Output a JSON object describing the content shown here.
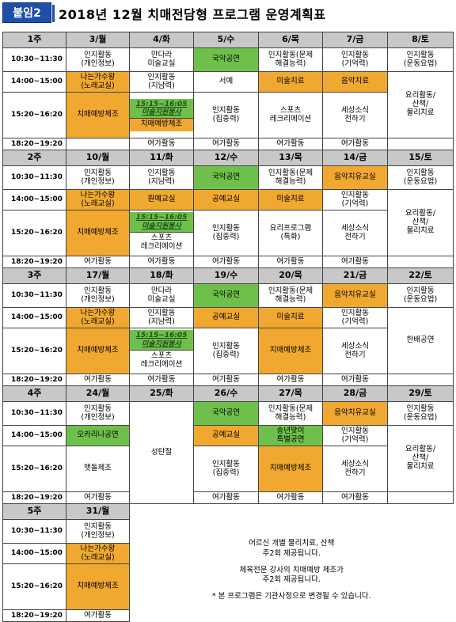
{
  "header": {
    "badge": "붙임2",
    "title": "2018년 12월 치매전담형 프로그램 운영계획표"
  },
  "times": [
    "10:30~11:30",
    "14:00~15:00",
    "15:20~16:20",
    "18:20~19:20"
  ],
  "weeks": [
    {
      "label": "1주",
      "days": [
        "3/월",
        "4/화",
        "5/수",
        "6/목",
        "7/금",
        "8/토"
      ],
      "rows": [
        [
          {
            "t": "인지활동\n(개인정보)"
          },
          {
            "t": "만다라\n미술교실"
          },
          {
            "t": "국악공연",
            "c": "g"
          },
          {
            "t": "인지활동(문제\n해결능력)"
          },
          {
            "t": "인지활동\n(기억력)"
          },
          {
            "t": "인지활동\n(운동요법)"
          }
        ],
        [
          {
            "t": "나는가수왕\n(노래교실)",
            "c": "o"
          },
          {
            "t": "인지활동\n(지남력)"
          },
          {
            "t": "서예"
          },
          {
            "t": "미술치료",
            "c": "o"
          },
          {
            "t": "음악치료",
            "c": "o"
          },
          {
            "t": "요리활동/\n산책/\n물리치료",
            "rs": 2
          }
        ],
        [
          {
            "t": "치매예방체조",
            "c": "o"
          },
          {
            "special": "15:15~16:05\n미술지원봉사",
            "t": "치매예방체조",
            "c": "g"
          },
          {
            "t": "인지활동\n(집중력)"
          },
          {
            "t": "스포츠\n레크리에이션"
          },
          {
            "t": "세상소식\n전하기"
          }
        ],
        [
          {
            "t": ""
          },
          {
            "t": "여가활동"
          },
          {
            "t": "여가활동"
          },
          {
            "t": "여가활동"
          },
          {
            "t": "여가활동"
          },
          {
            "t": ""
          }
        ]
      ]
    },
    {
      "label": "2주",
      "days": [
        "10/월",
        "11/화",
        "12/수",
        "13/목",
        "14/금",
        "15/토"
      ],
      "rows": [
        [
          {
            "t": "인지활동\n(개인정보)"
          },
          {
            "t": "인지활동\n(지남력)"
          },
          {
            "t": "국악공연",
            "c": "g"
          },
          {
            "t": "인지활동(문제\n해결능력)"
          },
          {
            "t": "음악치유교실",
            "c": "o"
          },
          {
            "t": "인지활동\n(운동요법)"
          }
        ],
        [
          {
            "t": "나는가수왕\n(노래교실)",
            "c": "o"
          },
          {
            "t": "원예교실",
            "c": "o"
          },
          {
            "t": "공예교실",
            "c": "o"
          },
          {
            "t": "미술치료",
            "c": "o"
          },
          {
            "t": "인지활동\n(기억력)"
          },
          {
            "t": "요리활동/\n산책/\n물리치료",
            "rs": 2
          }
        ],
        [
          {
            "t": "치매예방체조",
            "c": "o"
          },
          {
            "special": "15:15~16:05\n미술지원봉사",
            "t": "스포츠\n레크리에이션",
            "c": "g"
          },
          {
            "t": "인지활동\n(집중력)"
          },
          {
            "t": "요리프로그램\n(특화)"
          },
          {
            "t": "세상소식\n전하기"
          }
        ],
        [
          {
            "t": "여가활동"
          },
          {
            "t": "여가활동"
          },
          {
            "t": "여가활동"
          },
          {
            "t": "여가활동"
          },
          {
            "t": "여가활동"
          },
          {
            "t": ""
          }
        ]
      ]
    },
    {
      "label": "3주",
      "days": [
        "17/월",
        "18/화",
        "19/수",
        "20/목",
        "21/금",
        "22/토"
      ],
      "rows": [
        [
          {
            "t": "인지활동\n(개인정보)"
          },
          {
            "t": "만다라\n미술교실"
          },
          {
            "t": "국악공연",
            "c": "g"
          },
          {
            "t": "인지활동(문제\n해결능력)"
          },
          {
            "t": "음악치유교실",
            "c": "o"
          },
          {
            "t": "인지활동\n(운동요법)"
          }
        ],
        [
          {
            "t": "나는가수왕\n(노래교실)",
            "c": "o"
          },
          {
            "t": "인지활동\n(지남력)"
          },
          {
            "t": "공예교실",
            "c": "o"
          },
          {
            "t": "미술치료",
            "c": "o"
          },
          {
            "t": "인지활동\n(기억력)"
          },
          {
            "t": "한배공연",
            "rs": 2
          }
        ],
        [
          {
            "t": "치매예방체조",
            "c": "o"
          },
          {
            "special": "15:15~16:05\n미술지원봉사",
            "t": "스포츠\n레크리에이션",
            "c": "g"
          },
          {
            "t": "인지활동\n(집중력)"
          },
          {
            "t": "치매예방체조",
            "c": "o"
          },
          {
            "t": "세상소식\n전하기"
          }
        ],
        [
          {
            "t": "여가활동"
          },
          {
            "t": "여가활동"
          },
          {
            "t": "여가활동"
          },
          {
            "t": "여가활동"
          },
          {
            "t": "여가활동"
          },
          {
            "t": ""
          }
        ]
      ]
    },
    {
      "label": "4주",
      "days": [
        "24/월",
        "25/화",
        "26/수",
        "27/목",
        "28/금",
        "29/토"
      ],
      "holiday": "성탄절",
      "rows": [
        [
          {
            "t": "인지활동\n(개인정보)"
          },
          null,
          {
            "t": "국악공연",
            "c": "g"
          },
          {
            "t": "인지활동(문제\n해결능력)"
          },
          {
            "t": "음악치유교실",
            "c": "o"
          },
          {
            "t": "인지활동\n(운동요법)"
          }
        ],
        [
          {
            "t": "오카리나공연",
            "c": "g"
          },
          null,
          {
            "t": "공예교실",
            "c": "o"
          },
          {
            "t": "송년맞이\n특별공연",
            "c": "g"
          },
          {
            "t": "인지활동\n(기억력)"
          },
          {
            "t": "요리활동/\n산책/\n물리치료",
            "rs": 2
          }
        ],
        [
          {
            "t": "맷돌체조"
          },
          null,
          {
            "t": "인지활동\n(집중력)"
          },
          {
            "t": "치매예방체조",
            "c": "o"
          },
          {
            "t": "세상소식\n전하기"
          }
        ],
        [
          {
            "t": "여가활동"
          },
          null,
          {
            "t": "여가활동"
          },
          {
            "t": "여가활동"
          },
          {
            "t": "여가활동"
          },
          {
            "t": ""
          }
        ]
      ]
    },
    {
      "label": "5주",
      "days": [
        "31/월"
      ],
      "rows": [
        [
          {
            "t": "인지활동\n(개인정보)"
          }
        ],
        [
          {
            "t": "나는가수왕\n(노래교실)",
            "c": "o"
          }
        ],
        [
          {
            "t": "치매예방체조",
            "c": "o"
          }
        ],
        [
          {
            "t": "여가활동"
          }
        ]
      ]
    }
  ],
  "notes": [
    "어르신 개별 물리치료, 산책",
    "주2회 제공됩니다.",
    "체육전문 강사의 치매예방 체조가",
    "주2회 제공됩니다.",
    "* 본 프로그램은 기관사정으로 변경될 수 있습니다."
  ],
  "colors": {
    "green": "#6fc04a",
    "orange": "#f0a830",
    "header_gray": "#c8c8c8",
    "badge_blue": "#1f4fa8"
  }
}
